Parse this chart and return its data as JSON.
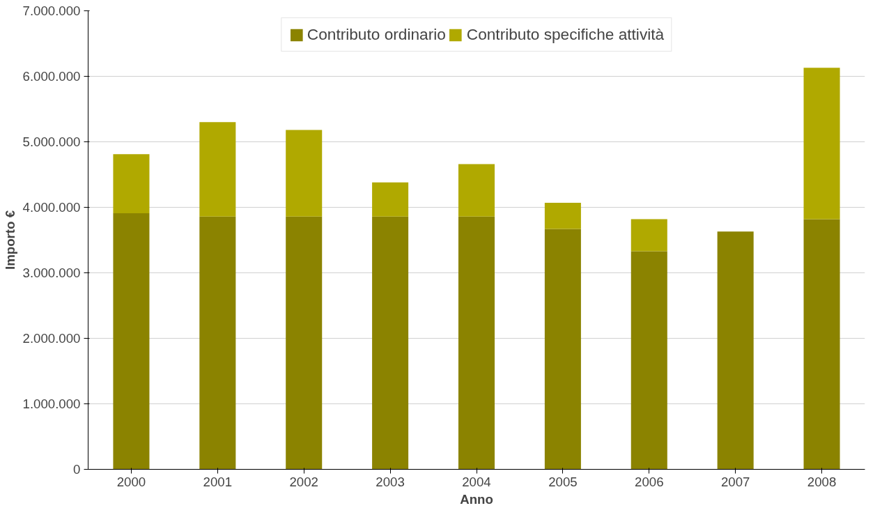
{
  "chart_data": {
    "type": "bar",
    "stacked": true,
    "xlabel": "Anno",
    "ylabel": "Importo €",
    "categories": [
      "2000",
      "2001",
      "2002",
      "2003",
      "2004",
      "2005",
      "2006",
      "2007",
      "2008"
    ],
    "series": [
      {
        "name": "Contributo ordinario",
        "color": "#8b8300",
        "values": [
          3910000,
          3860000,
          3860000,
          3860000,
          3860000,
          3670000,
          3330000,
          3630000,
          3820000
        ]
      },
      {
        "name": "Contributo specifiche attività",
        "color": "#b0a900",
        "values": [
          900000,
          1440000,
          1320000,
          520000,
          800000,
          400000,
          490000,
          0,
          2310000
        ]
      }
    ],
    "ylim": [
      0,
      7000000
    ],
    "yticks": [
      {
        "value": 0,
        "label": "0"
      },
      {
        "value": 1000000,
        "label": "1.000.000"
      },
      {
        "value": 2000000,
        "label": "2.000.000"
      },
      {
        "value": 3000000,
        "label": "3.000.000"
      },
      {
        "value": 4000000,
        "label": "4.000.000"
      },
      {
        "value": 5000000,
        "label": "5.000.000"
      },
      {
        "value": 6000000,
        "label": "6.000.000"
      },
      {
        "value": 7000000,
        "label": "7.000.000"
      }
    ],
    "grid": "y",
    "legend": "top"
  }
}
